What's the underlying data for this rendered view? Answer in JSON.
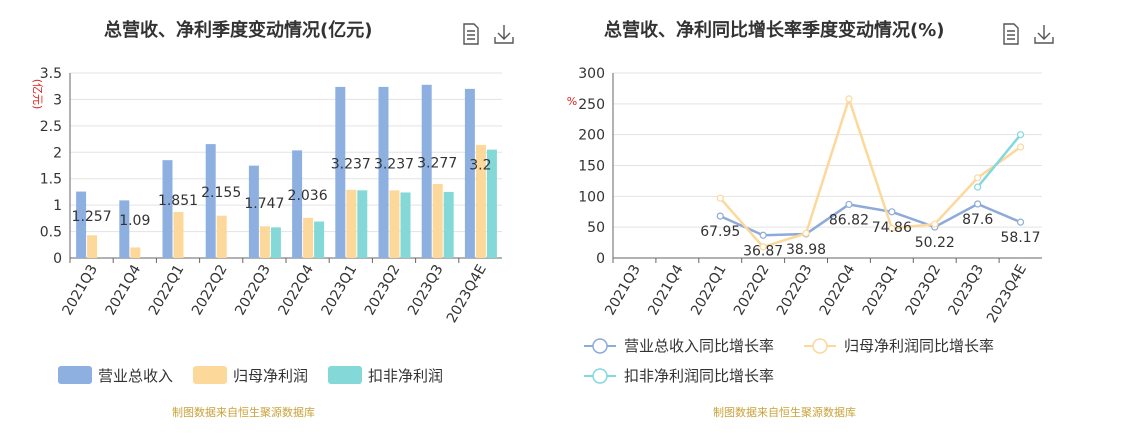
{
  "left": {
    "title": "总营收、净利季度变动情况(亿元)",
    "unit": "(亿元)",
    "source": "制图数据来自恒生聚源数据库",
    "icons": {
      "doc": "document-icon",
      "download": "download-icon"
    }
  },
  "right": {
    "title": "总营收、净利同比增长率季度变动情况(%)",
    "unit": "%",
    "source": "制图数据来自恒生聚源数据库",
    "icons": {
      "doc": "document-icon",
      "download": "download-icon"
    }
  },
  "chart_data": [
    {
      "type": "bar",
      "title": "总营收、净利季度变动情况(亿元)",
      "ylabel": "(亿元)",
      "ylim": [
        0,
        3.5
      ],
      "yticks": [
        "0",
        "0.5",
        "1",
        "1.5",
        "2",
        "2.5",
        "3",
        "3.5"
      ],
      "grid": true,
      "legend_position": "bottom",
      "categories": [
        "2021Q3",
        "2021Q4",
        "2022Q1",
        "2022Q2",
        "2022Q3",
        "2022Q4",
        "2023Q1",
        "2023Q2",
        "2023Q3",
        "2023Q4E"
      ],
      "series": [
        {
          "name": "营业总收入",
          "color": "#8eb0e0",
          "values": [
            1.257,
            1.09,
            1.851,
            2.155,
            1.747,
            2.036,
            3.237,
            3.237,
            3.277,
            3.2
          ],
          "labels": [
            "1.257",
            "1.09",
            "1.851",
            "2.155",
            "1.747",
            "2.036",
            "3.237",
            "3.237",
            "3.277",
            "3.2"
          ]
        },
        {
          "name": "归母净利润",
          "color": "#fdd89b",
          "values": [
            0.43,
            0.2,
            0.87,
            0.8,
            0.6,
            0.76,
            1.29,
            1.28,
            1.4,
            2.14
          ]
        },
        {
          "name": "扣非净利润",
          "color": "#84d8d8",
          "values": [
            null,
            null,
            null,
            null,
            0.58,
            0.69,
            1.28,
            1.24,
            1.25,
            2.05
          ]
        }
      ]
    },
    {
      "type": "line",
      "title": "总营收、净利同比增长率季度变动情况(%)",
      "ylabel": "%",
      "ylim": [
        0,
        300
      ],
      "yticks": [
        "0",
        "50",
        "100",
        "150",
        "200",
        "250",
        "300"
      ],
      "grid": true,
      "legend_position": "bottom",
      "categories": [
        "2021Q3",
        "2021Q4",
        "2022Q1",
        "2022Q2",
        "2022Q3",
        "2022Q4",
        "2023Q1",
        "2023Q2",
        "2023Q3",
        "2023Q4E"
      ],
      "series": [
        {
          "name": "营业总收入同比增长率",
          "color": "#8eaad8",
          "values": [
            null,
            null,
            67.95,
            36.87,
            38.98,
            86.82,
            74.86,
            50.22,
            87.6,
            58.17
          ],
          "labels": [
            null,
            null,
            "67.95",
            "36.87",
            "38.98",
            "86.82",
            "74.86",
            "50.22",
            "87.6",
            "58.17"
          ]
        },
        {
          "name": "归母净利润同比增长率",
          "color": "#fdd89b",
          "values": [
            null,
            null,
            97,
            18,
            40,
            258,
            48,
            55,
            130,
            180
          ]
        },
        {
          "name": "扣非净利润同比增长率",
          "color": "#84d8e0",
          "values": [
            null,
            null,
            null,
            null,
            null,
            null,
            null,
            null,
            115,
            200
          ]
        }
      ]
    }
  ]
}
